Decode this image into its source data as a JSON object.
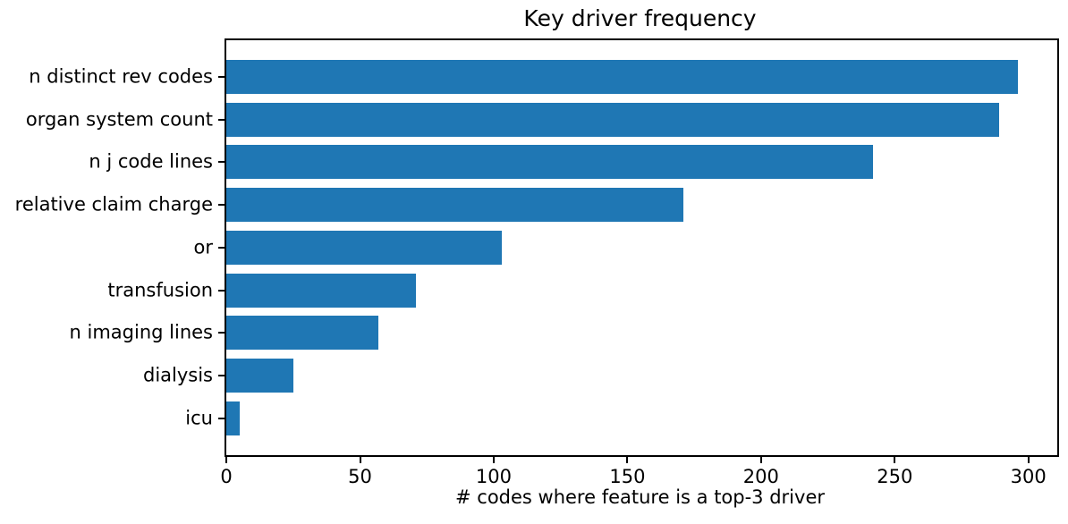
{
  "chart_data": {
    "type": "bar",
    "orientation": "horizontal",
    "title": "Key driver frequency",
    "xlabel": "# codes where feature is a top-3 driver",
    "categories": [
      "n distinct rev codes",
      "organ system count",
      "n j code lines",
      "relative claim charge",
      "or",
      "transfusion",
      "n imaging lines",
      "dialysis",
      "icu"
    ],
    "values": [
      296,
      289,
      242,
      171,
      103,
      71,
      57,
      25,
      5
    ],
    "x_ticks": [
      0,
      50,
      100,
      150,
      200,
      250,
      300
    ],
    "xlim": [
      0,
      310.8
    ],
    "grid": false,
    "bar_color": "#1f77b4",
    "spine_color": "#000000",
    "background_color": "#ffffff"
  }
}
